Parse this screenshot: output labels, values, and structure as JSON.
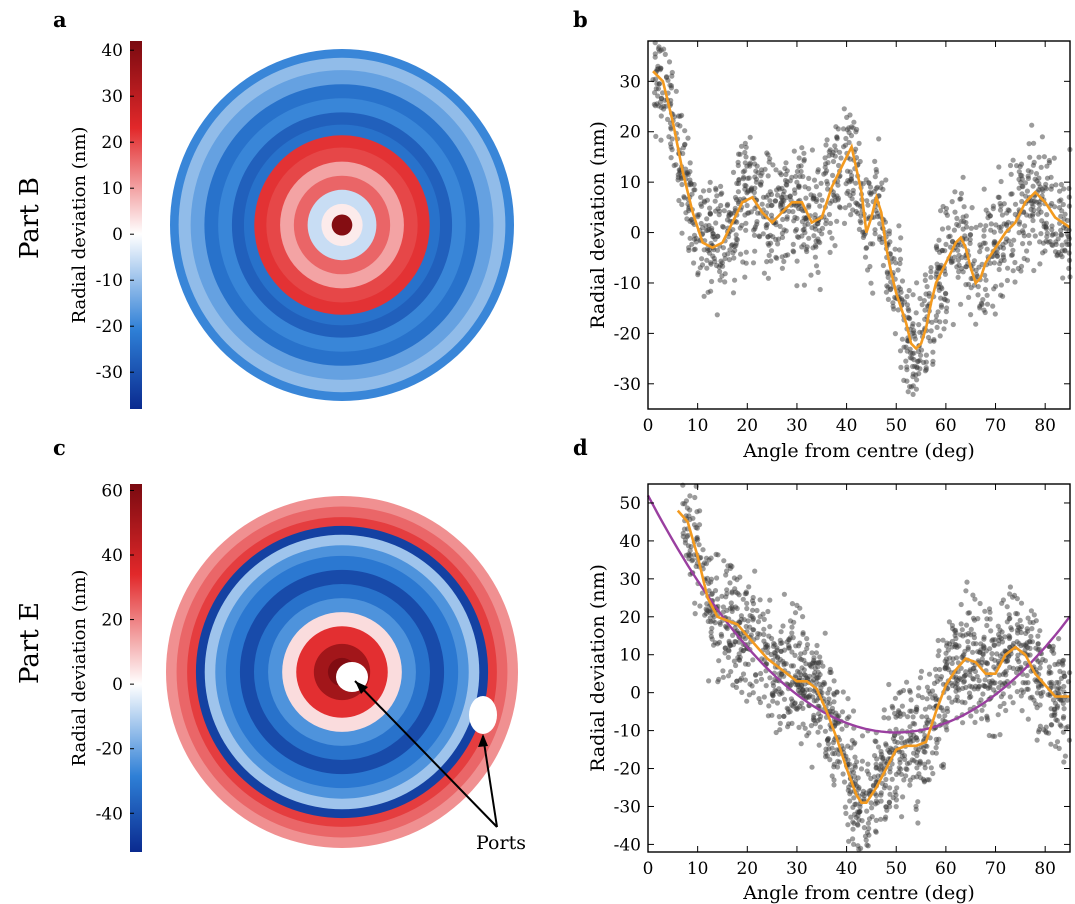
{
  "panels": {
    "a": {
      "letter": "a",
      "row_label": "Part B"
    },
    "b": {
      "letter": "b"
    },
    "c": {
      "letter": "c",
      "row_label": "Part E",
      "annotation": "Ports"
    },
    "d": {
      "letter": "d"
    }
  },
  "colors": {
    "scatter": "#3a3a3a",
    "fit_orange": "#f39a1f",
    "fit_purple": "#9a3fa0",
    "deep_blue": "#0a2a8f",
    "mid_blue": "#2e7fd6",
    "white": "#ffffff",
    "mid_red": "#e2282a",
    "deep_red": "#7a0a10"
  },
  "chart_data": [
    {
      "id": "a",
      "type": "heatmap",
      "colorbar_label": "Radial deviation (nm)",
      "colorbar_ticks": [
        40,
        30,
        20,
        10,
        0,
        -10,
        -20,
        -30
      ],
      "colorbar_ticklabels": [
        "40",
        "30",
        "20",
        "10",
        "0",
        "-10",
        "-20",
        "-30"
      ],
      "clim": [
        -38,
        42
      ],
      "rings": [
        {
          "r": 0.06,
          "value": 40
        },
        {
          "r": 0.12,
          "value": 2
        },
        {
          "r": 0.2,
          "value": -5
        },
        {
          "r": 0.28,
          "value": 15
        },
        {
          "r": 0.36,
          "value": 9
        },
        {
          "r": 0.44,
          "value": 18
        },
        {
          "r": 0.51,
          "value": 20
        },
        {
          "r": 0.57,
          "value": -22
        },
        {
          "r": 0.64,
          "value": -26
        },
        {
          "r": 0.72,
          "value": -18
        },
        {
          "r": 0.8,
          "value": -22
        },
        {
          "r": 0.88,
          "value": -14
        },
        {
          "r": 0.95,
          "value": -10
        },
        {
          "r": 1.0,
          "value": -18
        }
      ]
    },
    {
      "id": "b",
      "type": "scatter",
      "xlabel": "Angle from centre (deg)",
      "ylabel": "Radial deviation (nm)",
      "xlim": [
        0,
        85
      ],
      "ylim": [
        -35,
        38
      ],
      "xticks": [
        0,
        10,
        20,
        30,
        40,
        50,
        60,
        70,
        80
      ],
      "yticks": [
        -30,
        -20,
        -10,
        0,
        10,
        20,
        30
      ],
      "fit": {
        "x": [
          1,
          3,
          5,
          7,
          9,
          11,
          13,
          15,
          17,
          19,
          21,
          23,
          25,
          27,
          29,
          31,
          33,
          35,
          37,
          39,
          41,
          43,
          44,
          45,
          46,
          47,
          48,
          49,
          50,
          51,
          52,
          53,
          54,
          55,
          56,
          57,
          58,
          60,
          62,
          63,
          64,
          65,
          66,
          67,
          68,
          70,
          72,
          74,
          76,
          78,
          80,
          82,
          85
        ],
        "y": [
          32,
          30,
          22,
          12,
          4,
          -2,
          -3,
          -2,
          2,
          6,
          7,
          4,
          2,
          4,
          6,
          6,
          2,
          3,
          9,
          13,
          17,
          8,
          0,
          3,
          7,
          4,
          -3,
          -8,
          -12,
          -15,
          -18,
          -22,
          -23,
          -22,
          -19,
          -14,
          -10,
          -6,
          -2,
          -1,
          -3,
          -7,
          -10,
          -9,
          -6,
          -3,
          0,
          2,
          6,
          8,
          6,
          3,
          1
        ]
      }
    },
    {
      "id": "c",
      "type": "heatmap",
      "colorbar_label": "Radial deviation (nm)",
      "colorbar_ticks": [
        60,
        40,
        20,
        0,
        -20,
        -40
      ],
      "colorbar_ticklabels": [
        "60",
        "40",
        "20",
        "0",
        "-20",
        "-40"
      ],
      "clim": [
        -52,
        62
      ],
      "rings": [
        {
          "r": 0.08,
          "value": 60
        },
        {
          "r": 0.16,
          "value": 50
        },
        {
          "r": 0.26,
          "value": 30
        },
        {
          "r": 0.34,
          "value": 5
        },
        {
          "r": 0.42,
          "value": -22
        },
        {
          "r": 0.5,
          "value": -30
        },
        {
          "r": 0.58,
          "value": -42
        },
        {
          "r": 0.66,
          "value": -28
        },
        {
          "r": 0.72,
          "value": -22
        },
        {
          "r": 0.78,
          "value": -12
        },
        {
          "r": 0.83,
          "value": -45
        },
        {
          "r": 0.88,
          "value": 28
        },
        {
          "r": 0.94,
          "value": 22
        },
        {
          "r": 1.0,
          "value": 16
        }
      ]
    },
    {
      "id": "d",
      "type": "scatter",
      "xlabel": "Angle from centre (deg)",
      "ylabel": "Radial deviation (nm)",
      "xlim": [
        0,
        85
      ],
      "ylim": [
        -42,
        55
      ],
      "xticks": [
        0,
        10,
        20,
        30,
        40,
        50,
        60,
        70,
        80
      ],
      "yticks": [
        -40,
        -30,
        -20,
        -10,
        0,
        10,
        20,
        30,
        40,
        50
      ],
      "fit": {
        "x": [
          6,
          8,
          10,
          12,
          14,
          16,
          18,
          20,
          22,
          24,
          26,
          28,
          30,
          32,
          34,
          36,
          38,
          40,
          42,
          43,
          44,
          46,
          48,
          50,
          52,
          54,
          56,
          58,
          60,
          62,
          64,
          66,
          68,
          70,
          72,
          74,
          76,
          78,
          80,
          82,
          85
        ],
        "y": [
          48,
          45,
          36,
          25,
          20,
          19,
          18,
          15,
          12,
          9,
          7,
          5,
          3,
          3,
          1,
          -5,
          -12,
          -20,
          -27,
          -29,
          -29,
          -25,
          -20,
          -15,
          -14,
          -14,
          -13,
          -5,
          2,
          6,
          9,
          8,
          5,
          5,
          10,
          12,
          10,
          5,
          2,
          -1,
          -1
        ]
      },
      "quadratic_fit": {
        "x0": 50,
        "y0": -10.5,
        "a": 0.025
      }
    }
  ]
}
